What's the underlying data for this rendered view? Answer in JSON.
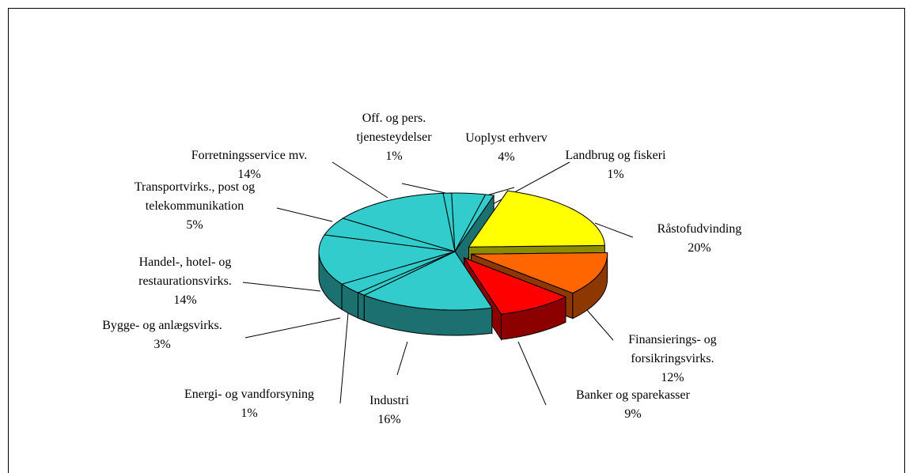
{
  "chart_data": {
    "type": "pie3d",
    "categories": [
      "Off. og pers. tjenesteydelser",
      "Uoplyst erhverv",
      "Landbrug og fiskeri",
      "Råstofudvinding",
      "Finansierings- og forsikringsvirks.",
      "Banker og sparekasser",
      "Industri",
      "Energi- og vandforsyning",
      "Bygge- og anlægsvirks.",
      "Handel-, hotel- og restaurationsvirks.",
      "Transportvirks., post og telekommunikation",
      "Forretningsservice mv."
    ],
    "values": [
      1,
      4,
      1,
      20,
      12,
      9,
      16,
      1,
      3,
      14,
      5,
      14
    ],
    "value_labels": [
      "1%",
      "4%",
      "1%",
      "20%",
      "12%",
      "9%",
      "16%",
      "1%",
      "3%",
      "14%",
      "5%",
      "14%"
    ],
    "colors": [
      "#33cccc",
      "#33cccc",
      "#33cccc",
      "#ffff00",
      "#ff6600",
      "#ff0000",
      "#33cccc",
      "#33cccc",
      "#33cccc",
      "#33cccc",
      "#33cccc",
      "#33cccc"
    ]
  }
}
